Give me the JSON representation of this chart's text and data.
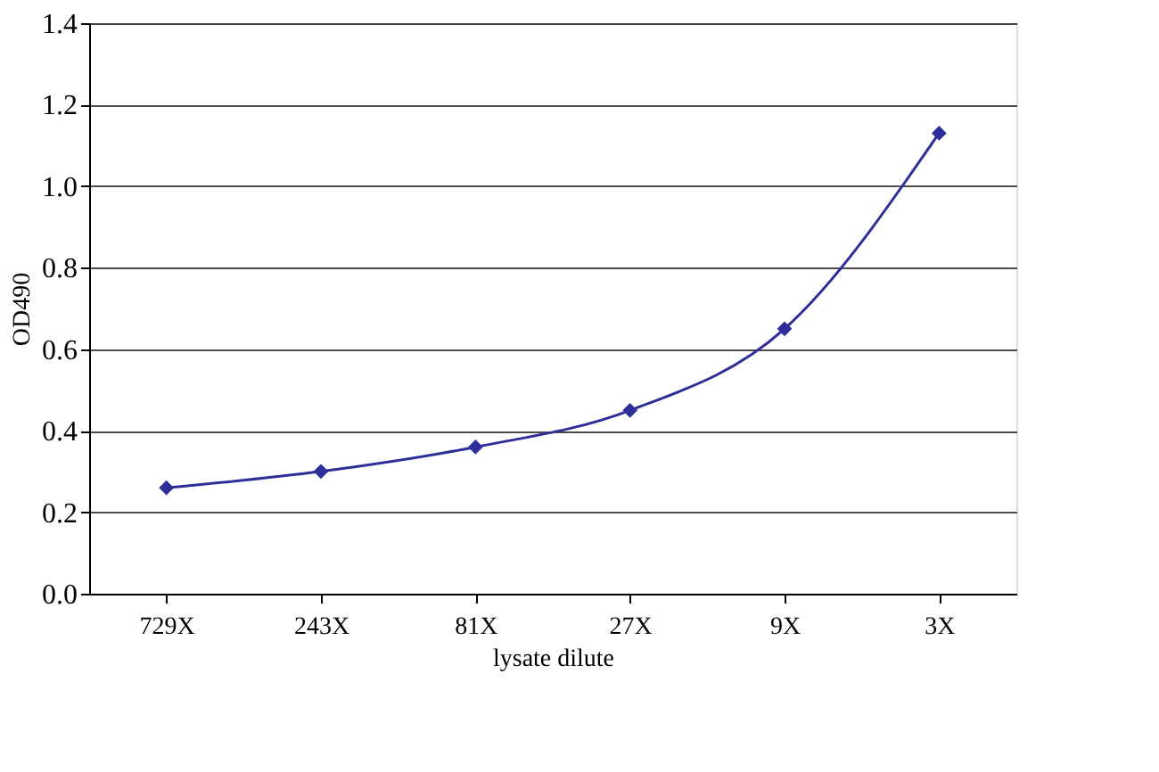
{
  "chart_data": {
    "type": "line",
    "xlabel": "lysate dilute",
    "ylabel": "OD490",
    "categories": [
      "729X",
      "243X",
      "81X",
      "27X",
      "9X",
      "3X"
    ],
    "series": [
      {
        "color": "#2e2e9a",
        "values": [
          0.26,
          0.3,
          0.36,
          0.45,
          0.65,
          1.13
        ]
      }
    ],
    "ylim": [
      0,
      1.4
    ],
    "yticks": [
      {
        "value": 0,
        "label": "0.0"
      },
      0.2,
      0.4,
      0.6,
      0.8,
      {
        "value": 1,
        "label": "1.0"
      },
      1.2,
      1.4
    ],
    "grid": "y",
    "marker": "diamond",
    "line_style": "solid"
  }
}
